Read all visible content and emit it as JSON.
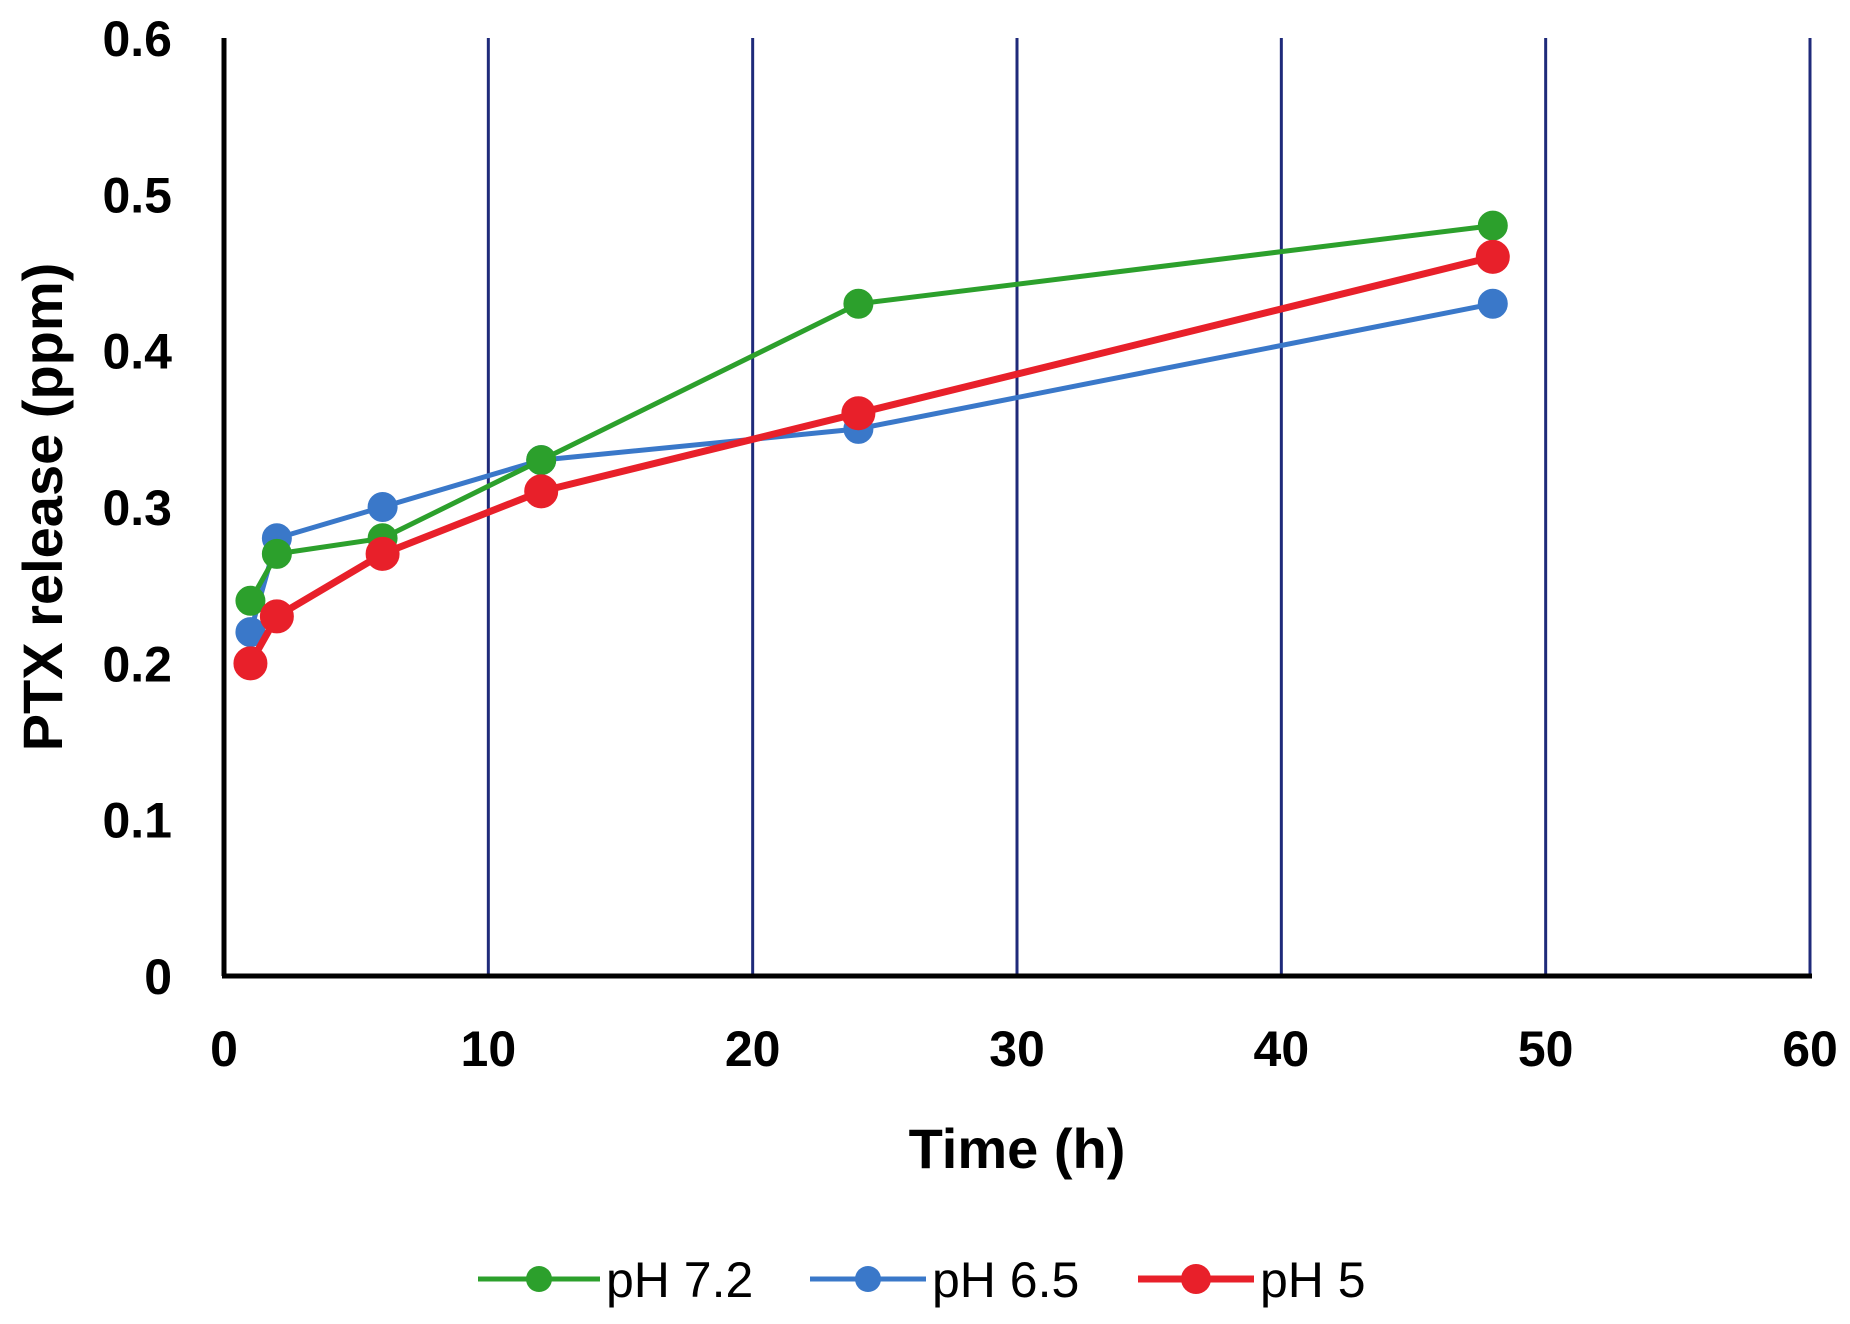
{
  "chart_data": {
    "type": "line",
    "title": "",
    "xlabel": "Time (h)",
    "ylabel": "PTX release (ppm)",
    "xlim": [
      0,
      60
    ],
    "ylim": [
      0,
      0.6
    ],
    "x_ticks": [
      0,
      10,
      20,
      30,
      40,
      50,
      60
    ],
    "y_ticks": [
      0,
      0.1,
      0.2,
      0.3,
      0.4,
      0.5,
      0.6
    ],
    "x_tick_labels": [
      "0",
      "10",
      "20",
      "30",
      "40",
      "50",
      "60"
    ],
    "y_tick_labels": [
      "0",
      "0.1",
      "0.2",
      "0.3",
      "0.4",
      "0.5",
      "0.6"
    ],
    "grid": "vertical",
    "grid_color": "#1f2a7a",
    "legend_position": "bottom",
    "x": [
      1,
      2,
      6,
      12,
      24,
      48
    ],
    "series": [
      {
        "name": "pH 7.2",
        "color": "#2ca02c",
        "values": [
          0.24,
          0.27,
          0.28,
          0.33,
          0.43,
          0.48
        ]
      },
      {
        "name": "pH 6.5",
        "color": "#3a78c9",
        "values": [
          0.22,
          0.28,
          0.3,
          0.33,
          0.35,
          0.43
        ]
      },
      {
        "name": "pH 5",
        "color": "#e8202a",
        "values": [
          0.2,
          0.23,
          0.27,
          0.31,
          0.36,
          0.46
        ]
      }
    ]
  }
}
